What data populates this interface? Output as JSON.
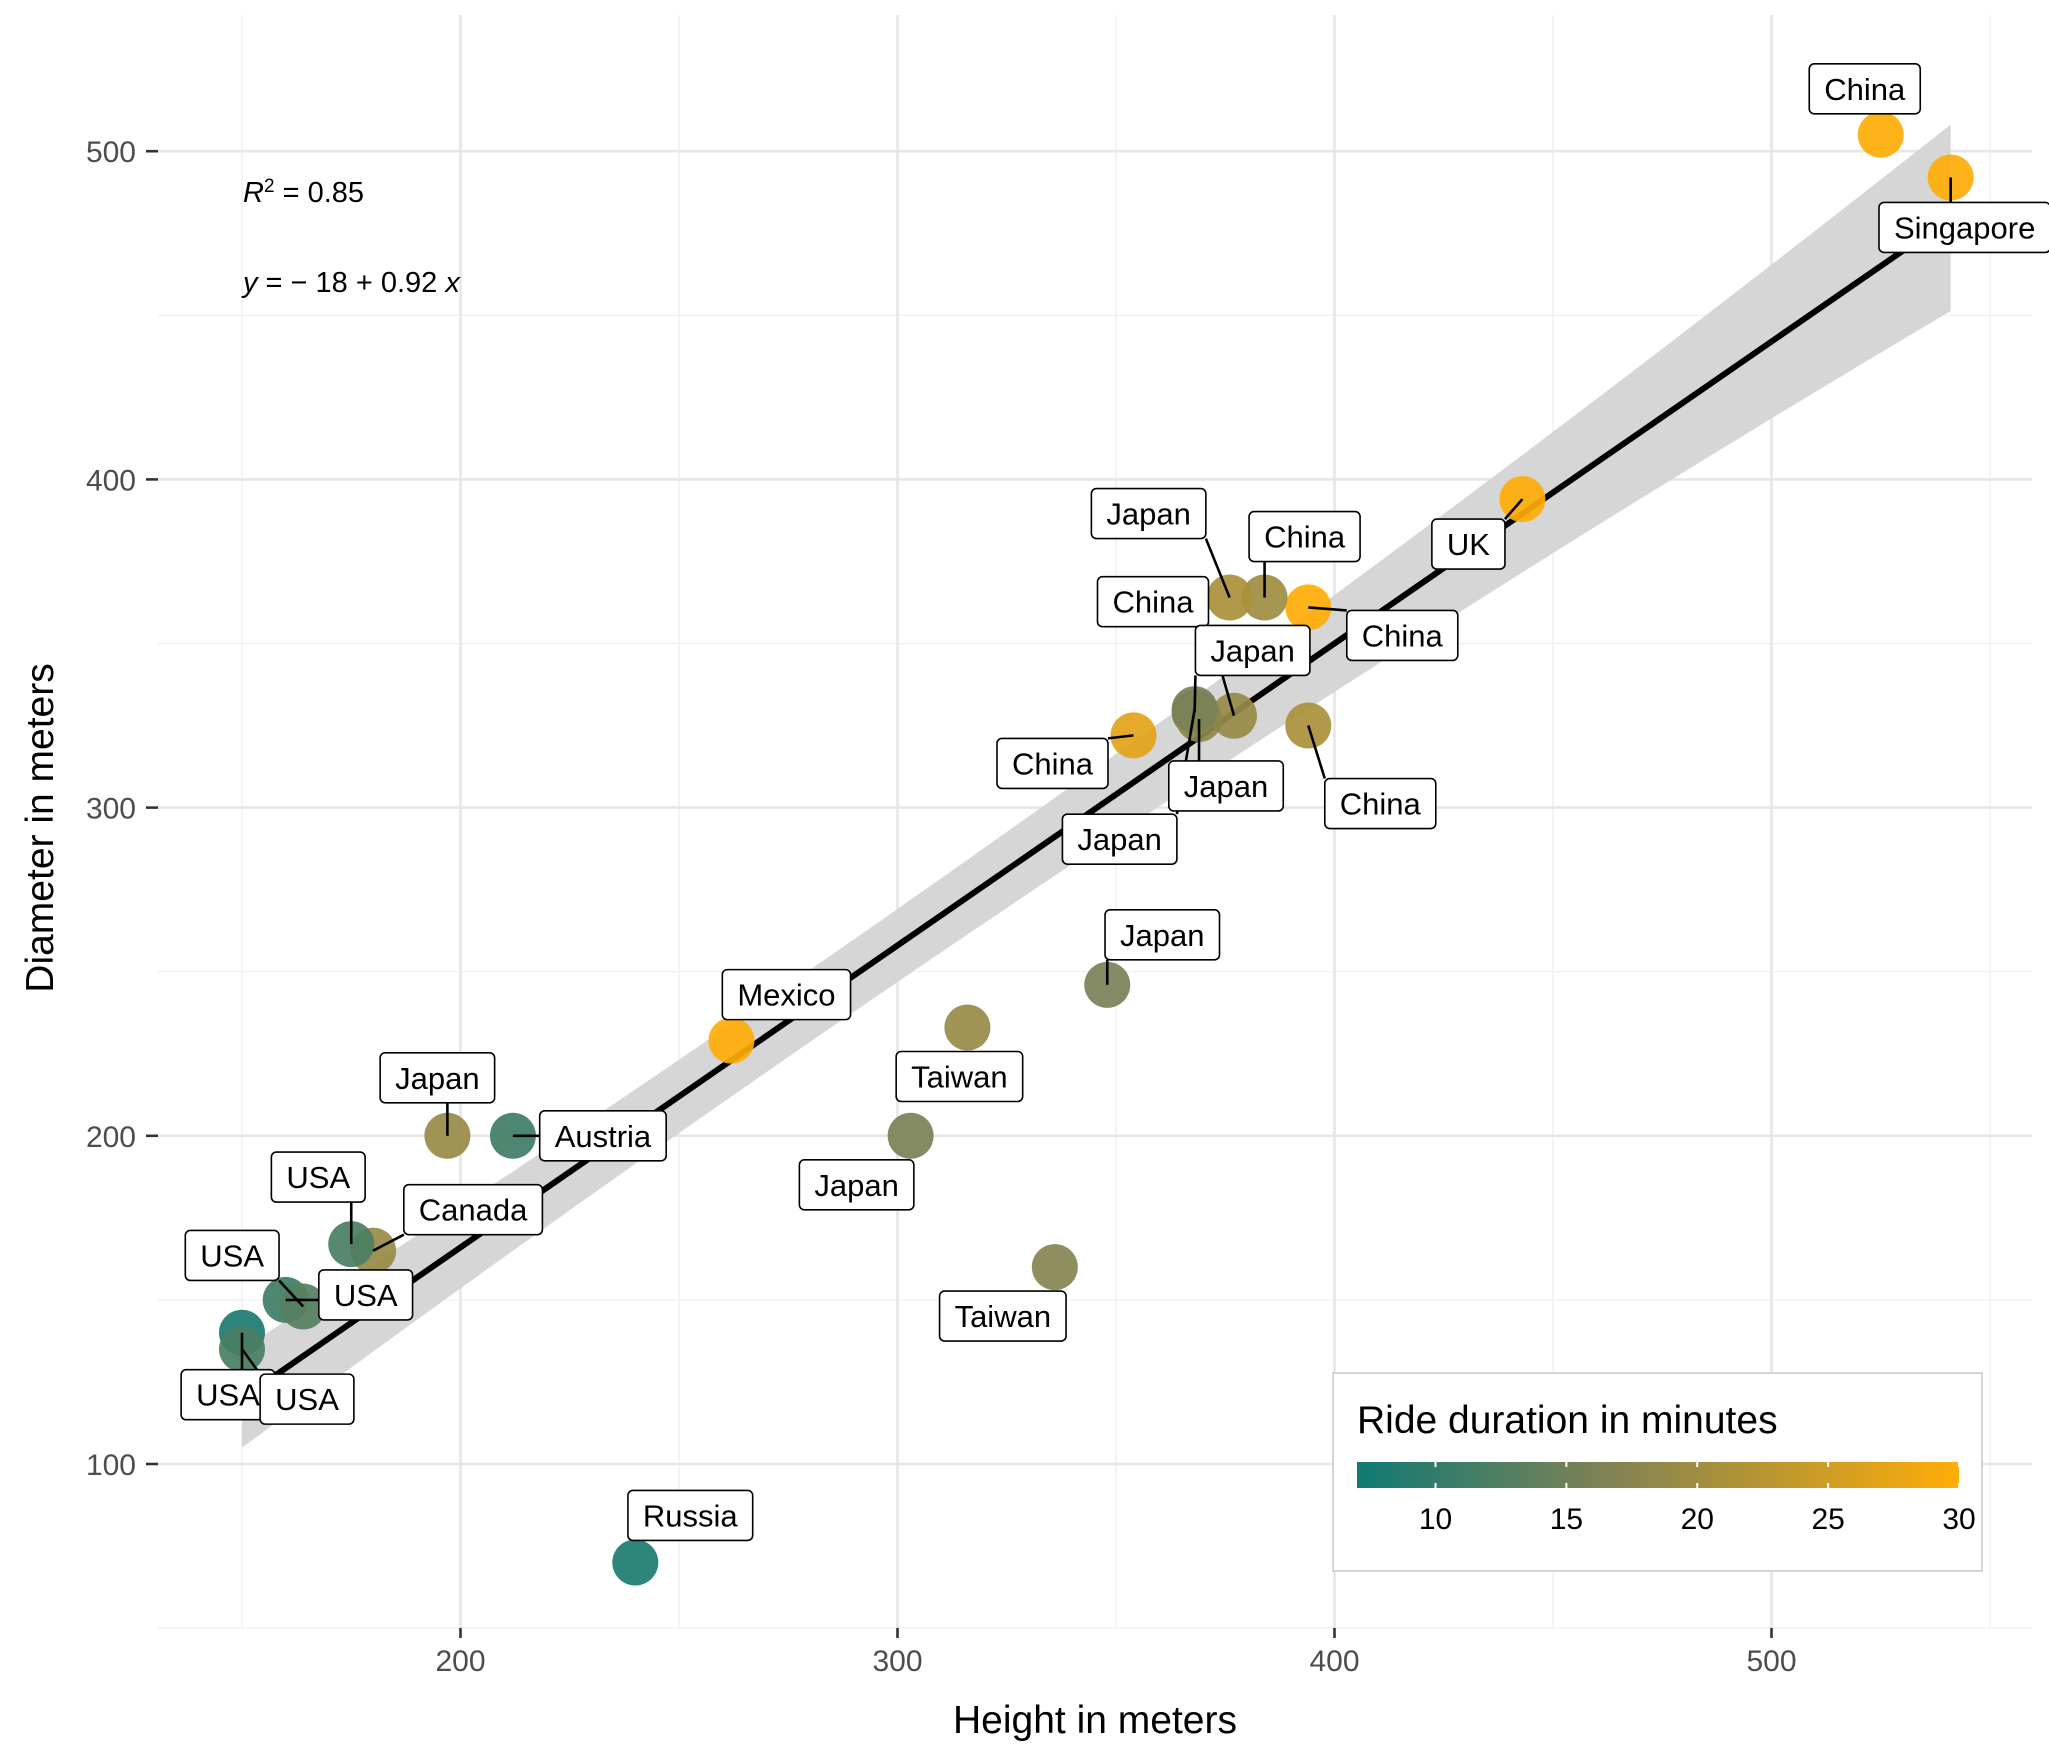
{
  "chart_data": {
    "type": "scatter",
    "xlabel": "Height in meters",
    "ylabel": "Diameter in meters",
    "xlim": [
      130,
      555
    ],
    "ylim": [
      50,
      545
    ],
    "x_ticks": [
      200,
      300,
      400,
      500
    ],
    "y_ticks": [
      100,
      200,
      300,
      400,
      500
    ],
    "grid": true,
    "annotation": {
      "r2_label": "R",
      "r2_sup": "2",
      "r2_value": " = 0.85",
      "eq_y": "y",
      "eq_mid": " = − 18 + 0.92 ",
      "eq_x": "x"
    },
    "regression": {
      "intercept": -18,
      "slope": 0.92,
      "x_range": [
        150,
        541
      ]
    },
    "colorbar": {
      "title": "Ride duration in minutes",
      "min": 7,
      "max": 30,
      "ticks": [
        10,
        15,
        20,
        25,
        30
      ],
      "colors": [
        "#0f7a73",
        "#7c8156",
        "#ffad08"
      ],
      "position": "bottom-right"
    },
    "points": [
      {
        "x": 525,
        "y": 505,
        "duration": 30,
        "label": "China"
      },
      {
        "x": 541,
        "y": 492,
        "duration": 30,
        "label": "Singapore"
      },
      {
        "x": 443,
        "y": 394,
        "duration": 30,
        "label": "UK"
      },
      {
        "x": 394,
        "y": 361,
        "duration": 30,
        "label": "China"
      },
      {
        "x": 384,
        "y": 364,
        "duration": 20,
        "label": "China"
      },
      {
        "x": 376,
        "y": 364,
        "duration": 21,
        "label": "Japan"
      },
      {
        "x": 377,
        "y": 328,
        "duration": 19,
        "label": "China"
      },
      {
        "x": 368,
        "y": 329,
        "duration": 15,
        "label": "Japan"
      },
      {
        "x": 394,
        "y": 325,
        "duration": 21,
        "label": "China"
      },
      {
        "x": 354,
        "y": 322,
        "duration": 27,
        "label": "China"
      },
      {
        "x": 369,
        "y": 327,
        "duration": 18,
        "label": "Japan"
      },
      {
        "x": 368,
        "y": 330,
        "duration": 16,
        "label": "Japan"
      },
      {
        "x": 348,
        "y": 246,
        "duration": 16,
        "label": "Japan"
      },
      {
        "x": 316,
        "y": 233,
        "duration": 19,
        "label": "Taiwan"
      },
      {
        "x": 303,
        "y": 200,
        "duration": 16,
        "label": "Japan"
      },
      {
        "x": 336,
        "y": 160,
        "duration": 17,
        "label": "Taiwan"
      },
      {
        "x": 262,
        "y": 229,
        "duration": 30,
        "label": "Mexico"
      },
      {
        "x": 197,
        "y": 200,
        "duration": 19,
        "label": "Japan"
      },
      {
        "x": 212,
        "y": 200,
        "duration": 11,
        "label": "Austria"
      },
      {
        "x": 180,
        "y": 165,
        "duration": 19,
        "label": "Canada"
      },
      {
        "x": 175,
        "y": 167,
        "duration": 12,
        "label": "USA"
      },
      {
        "x": 160,
        "y": 150,
        "duration": 11,
        "label": "USA"
      },
      {
        "x": 164,
        "y": 148,
        "duration": 13,
        "label": "USA"
      },
      {
        "x": 150,
        "y": 140,
        "duration": 8,
        "label": "USA"
      },
      {
        "x": 150,
        "y": 135,
        "duration": 12,
        "label": "USA"
      },
      {
        "x": 240,
        "y": 70,
        "duration": 8,
        "label": "Russia"
      }
    ]
  }
}
